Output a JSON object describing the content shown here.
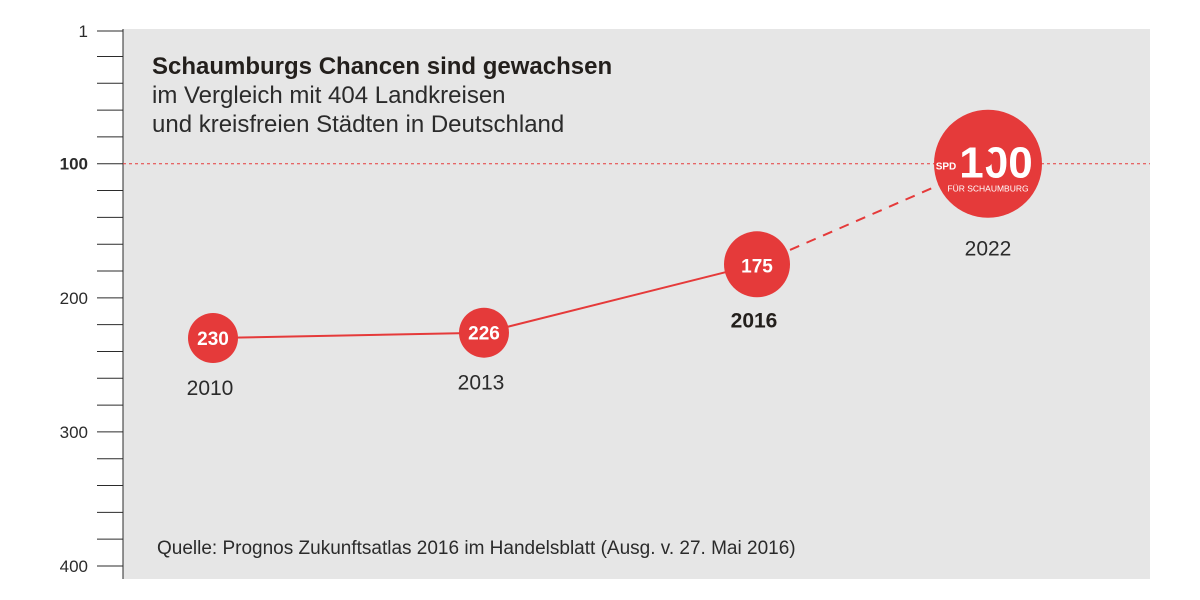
{
  "chart_data": {
    "type": "line",
    "title": "Schaumburgs Chancen sind gewachsen",
    "subtitle_lines": [
      "im Vergleich mit 404 Landkreisen",
      "und kreisfreien Städten in Deutschland"
    ],
    "y_axis": {
      "reversed": true,
      "ylim": [
        1,
        400
      ],
      "tick_labels": [
        {
          "value": 1,
          "label": "1"
        },
        {
          "value": 100,
          "label": "100",
          "highlight": true
        },
        {
          "value": 200,
          "label": "200"
        },
        {
          "value": 300,
          "label": "300"
        },
        {
          "value": 400,
          "label": "400"
        }
      ],
      "minor_tick_step": 20
    },
    "reference_line": {
      "value": 100
    },
    "points": [
      {
        "year": "2010",
        "value": 230,
        "label": "230"
      },
      {
        "year": "2013",
        "value": 226,
        "label": "226"
      },
      {
        "year": "2016",
        "value": 175,
        "label": "175",
        "highlight": true
      },
      {
        "year": "2022",
        "value": 100,
        "label": "100",
        "projected": true,
        "badge": "SPD",
        "badge_subtext": "FÜR SCHAUMBURG"
      }
    ],
    "source": "Quelle: Prognos Zukunftsatlas 2016 im Handelsblatt (Ausg. v. 27. Mai 2016)",
    "colors": {
      "accent": "#e53a3a",
      "panel_bg": "#e6e6e6",
      "text": "#2b2b2b"
    }
  }
}
